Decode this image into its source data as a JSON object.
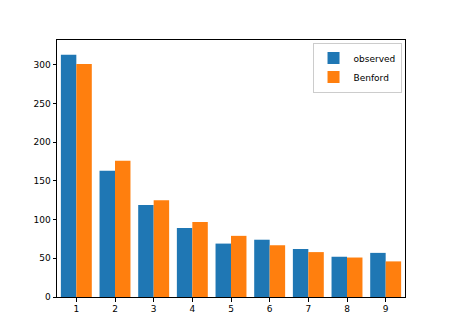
{
  "chart_data": {
    "type": "bar",
    "categories": [
      "1",
      "2",
      "3",
      "4",
      "5",
      "6",
      "7",
      "8",
      "9"
    ],
    "series": [
      {
        "name": "observed",
        "color": "#1f77b4",
        "values": [
          313,
          163,
          119,
          89,
          69,
          74,
          62,
          52,
          57
        ]
      },
      {
        "name": "Benford",
        "color": "#ff7f0e",
        "values": [
          301,
          176,
          125,
          97,
          79,
          67,
          58,
          51,
          46
        ]
      }
    ],
    "ylim": [
      0,
      332
    ],
    "yticks": [
      0,
      50,
      100,
      150,
      200,
      250,
      300
    ],
    "grid": false,
    "legend": "upper right"
  }
}
